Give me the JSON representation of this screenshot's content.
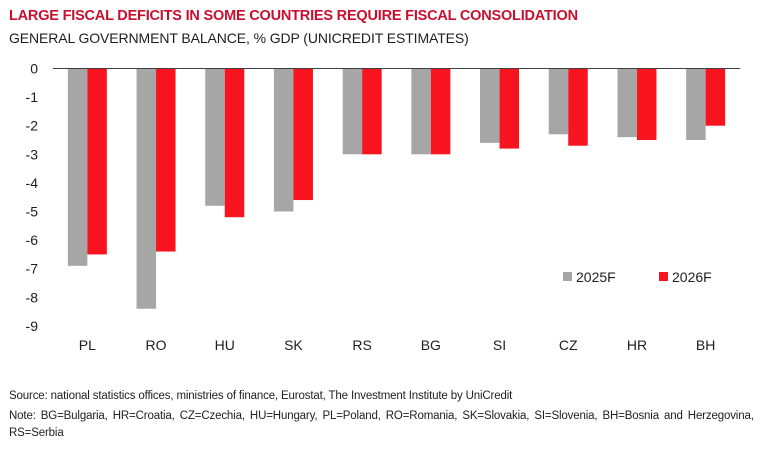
{
  "header": {
    "title": "LARGE FISCAL DEFICITS IN SOME COUNTRIES REQUIRE FISCAL CONSOLIDATION",
    "subtitle": "GENERAL GOVERNMENT BALANCE, % GDP (UNICREDIT ESTIMATES)"
  },
  "colors": {
    "title": "#c8102e",
    "series_2025": "#a6a6a6",
    "series_2026": "#f8141e",
    "axis": "#404040"
  },
  "chart_data": {
    "type": "bar",
    "title": "LARGE FISCAL DEFICITS IN SOME COUNTRIES REQUIRE FISCAL CONSOLIDATION",
    "subtitle": "GENERAL GOVERNMENT BALANCE, % GDP (UNICREDIT ESTIMATES)",
    "xlabel": "",
    "ylabel": "",
    "categories": [
      "PL",
      "RO",
      "HU",
      "SK",
      "RS",
      "BG",
      "SI",
      "CZ",
      "HR",
      "BH"
    ],
    "series": [
      {
        "name": "2025F",
        "values": [
          -6.9,
          -8.4,
          -4.8,
          -5.0,
          -3.0,
          -3.0,
          -2.6,
          -2.3,
          -2.4,
          -2.5
        ]
      },
      {
        "name": "2026F",
        "values": [
          -6.5,
          -6.4,
          -5.2,
          -4.6,
          -3.0,
          -3.0,
          -2.8,
          -2.7,
          -2.5,
          -2.0
        ]
      }
    ],
    "ylim": [
      -9,
      0
    ],
    "yticks": [
      0,
      -1,
      -2,
      -3,
      -4,
      -5,
      -6,
      -7,
      -8,
      -9
    ],
    "grid": false,
    "legend": {
      "position": "bottom-right",
      "entries": [
        "2025F",
        "2026F"
      ]
    }
  },
  "footer": {
    "source": "Source: national statistics offices, ministries of finance, Eurostat, The Investment Institute by UniCredit",
    "note": "Note: BG=Bulgaria, HR=Croatia, CZ=Czechia, HU=Hungary, PL=Poland, RO=Romania, SK=Slovakia, SI=Slovenia, BH=Bosnia and Herzegovina, RS=Serbia"
  }
}
